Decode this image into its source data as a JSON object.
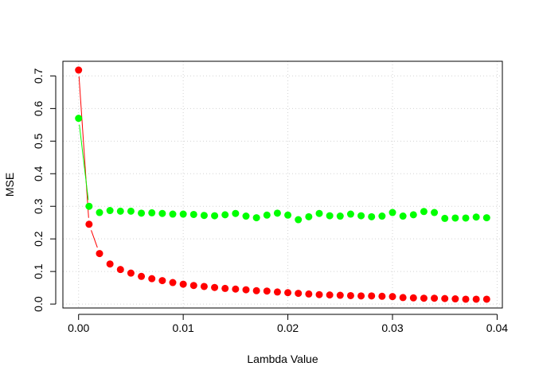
{
  "chart_data": {
    "type": "scatter",
    "title": "",
    "xlabel": "Lambda Value",
    "ylabel": "MSE",
    "xlim": [
      -0.0015,
      0.0405
    ],
    "ylim": [
      -0.012,
      0.745
    ],
    "xticks": [
      0.0,
      0.01,
      0.02,
      0.03,
      0.04
    ],
    "xtick_labels": [
      "0.00",
      "0.01",
      "0.02",
      "0.03",
      "0.04"
    ],
    "yticks": [
      0.0,
      0.1,
      0.2,
      0.3,
      0.4,
      0.5,
      0.6,
      0.7
    ],
    "ytick_labels": [
      "0.0",
      "0.1",
      "0.2",
      "0.3",
      "0.4",
      "0.5",
      "0.6",
      "0.7"
    ],
    "grid": true,
    "legend": "none",
    "x": [
      0.0,
      0.001,
      0.002,
      0.003,
      0.004,
      0.005,
      0.006,
      0.007,
      0.008,
      0.009,
      0.01,
      0.011,
      0.012,
      0.013,
      0.014,
      0.015,
      0.016,
      0.017,
      0.018,
      0.019,
      0.02,
      0.021,
      0.022,
      0.023,
      0.024,
      0.025,
      0.026,
      0.027,
      0.028,
      0.029,
      0.03,
      0.031,
      0.032,
      0.033,
      0.034,
      0.035,
      0.036,
      0.037,
      0.038,
      0.039
    ],
    "series": [
      {
        "color": "#ff0000",
        "connect_first_points": 3,
        "values": [
          0.718,
          0.245,
          0.155,
          0.123,
          0.106,
          0.095,
          0.085,
          0.078,
          0.072,
          0.066,
          0.061,
          0.057,
          0.054,
          0.051,
          0.048,
          0.046,
          0.044,
          0.041,
          0.04,
          0.037,
          0.035,
          0.033,
          0.031,
          0.029,
          0.028,
          0.027,
          0.026,
          0.025,
          0.025,
          0.024,
          0.023,
          0.02,
          0.019,
          0.018,
          0.018,
          0.017,
          0.016,
          0.015,
          0.015,
          0.015
        ]
      },
      {
        "color": "#00ff00",
        "connect_first_points": 2,
        "values": [
          0.57,
          0.3,
          0.281,
          0.287,
          0.285,
          0.285,
          0.279,
          0.28,
          0.278,
          0.276,
          0.276,
          0.275,
          0.272,
          0.271,
          0.274,
          0.278,
          0.27,
          0.265,
          0.273,
          0.279,
          0.273,
          0.259,
          0.268,
          0.278,
          0.271,
          0.27,
          0.276,
          0.271,
          0.268,
          0.27,
          0.281,
          0.27,
          0.274,
          0.284,
          0.281,
          0.263,
          0.264,
          0.264,
          0.267,
          0.265
        ]
      }
    ]
  }
}
